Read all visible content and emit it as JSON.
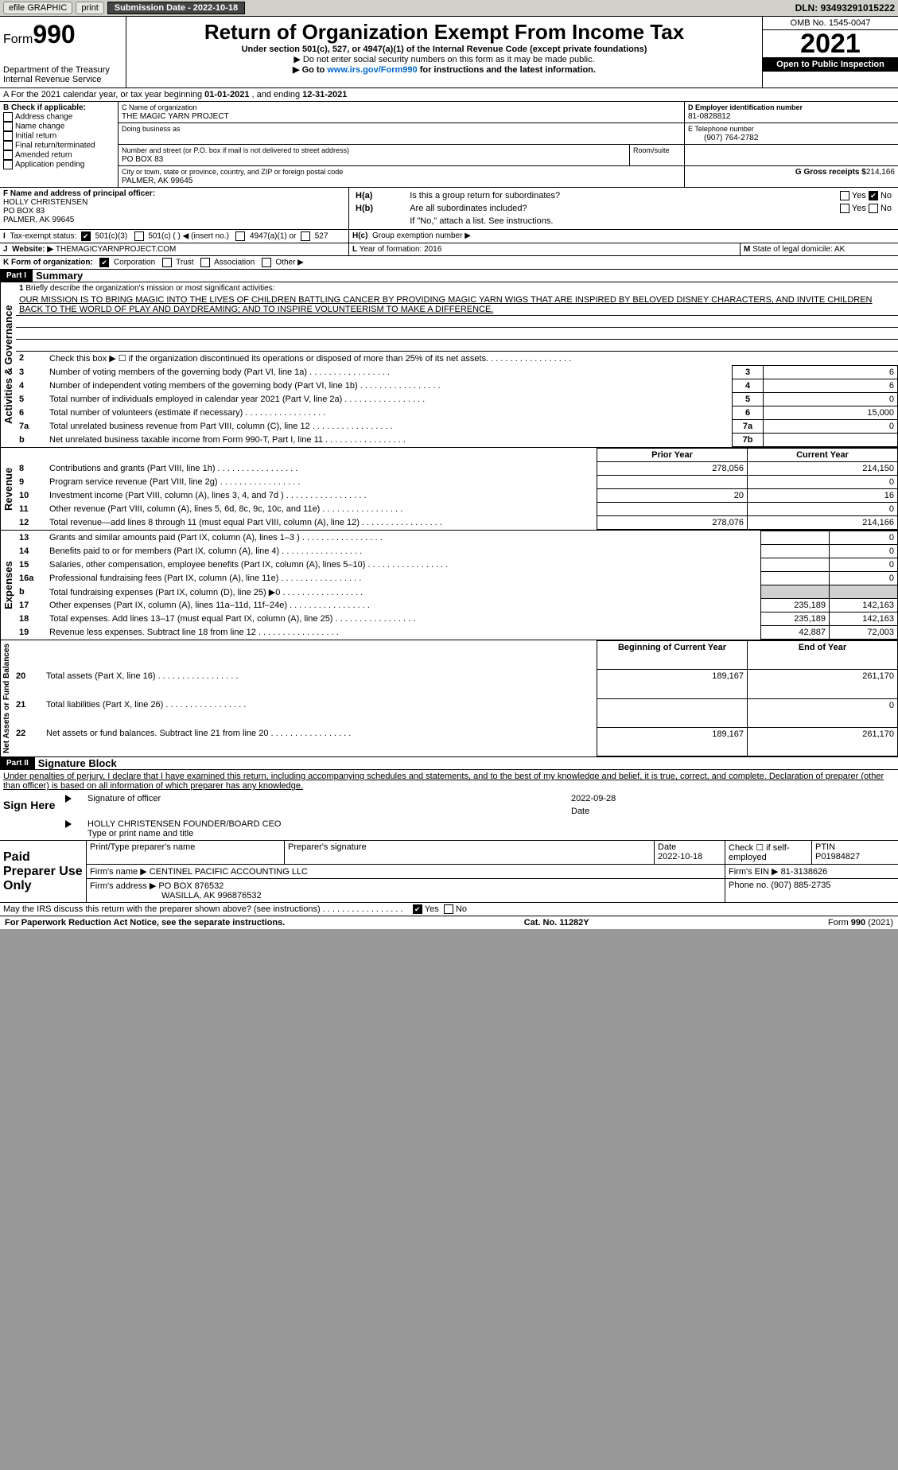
{
  "topbar": {
    "efile": "efile GRAPHIC",
    "print": "print",
    "subdate_label": "Submission Date - ",
    "subdate": "2022-10-18",
    "dln_label": "DLN: ",
    "dln": "93493291015222"
  },
  "header": {
    "form_pre": "Form",
    "form_no": "990",
    "title": "Return of Organization Exempt From Income Tax",
    "subtitle": "Under section 501(c), 527, or 4947(a)(1) of the Internal Revenue Code (except private foundations)",
    "note1": "▶ Do not enter social security numbers on this form as it may be made public.",
    "note2_pre": "▶ Go to ",
    "note2_link": "www.irs.gov/Form990",
    "note2_post": " for instructions and the latest information.",
    "dept": "Department of the Treasury",
    "irs": "Internal Revenue Service",
    "omb": "OMB No. 1545-0047",
    "year": "2021",
    "openpub": "Open to Public Inspection"
  },
  "A": {
    "text_pre": "A For the 2021 calendar year, or tax year beginning ",
    "begin": "01-01-2021",
    "mid": " , and ending ",
    "end": "12-31-2021"
  },
  "B": {
    "label": "B Check if applicable:",
    "items": [
      "Address change",
      "Name change",
      "Initial return",
      "Final return/terminated",
      "Amended return",
      "Application pending"
    ]
  },
  "C": {
    "name_label": "C Name of organization",
    "name": "THE MAGIC YARN PROJECT",
    "dba_label": "Doing business as",
    "street_label": "Number and street (or P.O. box if mail is not delivered to street address)",
    "room_label": "Room/suite",
    "street": "PO BOX 83",
    "city_label": "City or town, state or province, country, and ZIP or foreign postal code",
    "city": "PALMER, AK  99645"
  },
  "D": {
    "label": "D Employer identification number",
    "val": "81-0828812"
  },
  "E": {
    "label": "E Telephone number",
    "val": "(907) 764-2782"
  },
  "G": {
    "label": "G Gross receipts $",
    "val": "214,166"
  },
  "F": {
    "label": "F  Name and address of principal officer:",
    "name": "HOLLY CHRISTENSEN",
    "addr1": "PO BOX 83",
    "addr2": "PALMER, AK  99645"
  },
  "H": {
    "a_label": "H(a)",
    "a_text": "Is this a group return for subordinates?",
    "a_yes": "Yes",
    "a_no": "No",
    "b_label": "H(b)",
    "b_text": "Are all subordinates included?",
    "b_note": "If \"No,\" attach a list. See instructions.",
    "c_label": "H(c)",
    "c_text": "Group exemption number ▶"
  },
  "I": {
    "label": "I",
    "text": "Tax-exempt status:",
    "c3": "501(c)(3)",
    "c": "501(c) (  ) ◀ (insert no.)",
    "a1": "4947(a)(1) or",
    "s527": "527"
  },
  "J": {
    "label": "J",
    "text": "Website: ▶",
    "val": "THEMAGICYARNPROJECT.COM"
  },
  "K": {
    "text": "K Form of organization:",
    "corp": "Corporation",
    "trust": "Trust",
    "assoc": "Association",
    "other": "Other ▶"
  },
  "L": {
    "label": "L",
    "text": "Year of formation: ",
    "val": "2016"
  },
  "M": {
    "label": "M",
    "text": "State of legal domicile: ",
    "val": "AK"
  },
  "part1": {
    "label": "Part I",
    "title": "Summary",
    "side1": "Activities & Governance",
    "side2": "Revenue",
    "side3": "Expenses",
    "side4": "Net Assets or Fund Balances",
    "l1_label": "1",
    "l1": "Briefly describe the organization's mission or most significant activities:",
    "mission": "OUR MISSION IS TO BRING MAGIC INTO THE LIVES OF CHILDREN BATTLING CANCER BY PROVIDING MAGIC YARN WIGS THAT ARE INSPIRED BY BELOVED DISNEY CHARACTERS, AND INVITE CHILDREN BACK TO THE WORLD OF PLAY AND DAYDREAMING; AND TO INSPIRE VOLUNTEERISM TO MAKE A DIFFERENCE.",
    "l2": "Check this box ▶ ☐  if the organization discontinued its operations or disposed of more than 25% of its net assets.",
    "rows_gov": [
      {
        "n": "3",
        "t": "Number of voting members of the governing body (Part VI, line 1a)",
        "box": "3",
        "v": "6"
      },
      {
        "n": "4",
        "t": "Number of independent voting members of the governing body (Part VI, line 1b)",
        "box": "4",
        "v": "6"
      },
      {
        "n": "5",
        "t": "Total number of individuals employed in calendar year 2021 (Part V, line 2a)",
        "box": "5",
        "v": "0"
      },
      {
        "n": "6",
        "t": "Total number of volunteers (estimate if necessary)",
        "box": "6",
        "v": "15,000"
      },
      {
        "n": "7a",
        "t": "Total unrelated business revenue from Part VIII, column (C), line 12",
        "box": "7a",
        "v": "0"
      },
      {
        "n": "b",
        "t": "Net unrelated business taxable income from Form 990-T, Part I, line 11",
        "box": "7b",
        "v": ""
      }
    ],
    "col_prior": "Prior Year",
    "col_current": "Current Year",
    "rows_rev": [
      {
        "n": "8",
        "t": "Contributions and grants (Part VIII, line 1h)",
        "p": "278,056",
        "c": "214,150"
      },
      {
        "n": "9",
        "t": "Program service revenue (Part VIII, line 2g)",
        "p": "",
        "c": "0"
      },
      {
        "n": "10",
        "t": "Investment income (Part VIII, column (A), lines 3, 4, and 7d )",
        "p": "20",
        "c": "16"
      },
      {
        "n": "11",
        "t": "Other revenue (Part VIII, column (A), lines 5, 6d, 8c, 9c, 10c, and 11e)",
        "p": "",
        "c": "0"
      },
      {
        "n": "12",
        "t": "Total revenue—add lines 8 through 11 (must equal Part VIII, column (A), line 12)",
        "p": "278,076",
        "c": "214,166"
      }
    ],
    "rows_exp": [
      {
        "n": "13",
        "t": "Grants and similar amounts paid (Part IX, column (A), lines 1–3 )",
        "p": "",
        "c": "0"
      },
      {
        "n": "14",
        "t": "Benefits paid to or for members (Part IX, column (A), line 4)",
        "p": "",
        "c": "0"
      },
      {
        "n": "15",
        "t": "Salaries, other compensation, employee benefits (Part IX, column (A), lines 5–10)",
        "p": "",
        "c": "0"
      },
      {
        "n": "16a",
        "t": "Professional fundraising fees (Part IX, column (A), line 11e)",
        "p": "",
        "c": "0"
      },
      {
        "n": "b",
        "t": "Total fundraising expenses (Part IX, column (D), line 25) ▶0",
        "p": "shade",
        "c": "shade"
      },
      {
        "n": "17",
        "t": "Other expenses (Part IX, column (A), lines 11a–11d, 11f–24e)",
        "p": "235,189",
        "c": "142,163"
      },
      {
        "n": "18",
        "t": "Total expenses. Add lines 13–17 (must equal Part IX, column (A), line 25)",
        "p": "235,189",
        "c": "142,163"
      },
      {
        "n": "19",
        "t": "Revenue less expenses. Subtract line 18 from line 12",
        "p": "42,887",
        "c": "72,003"
      }
    ],
    "col_begin": "Beginning of Current Year",
    "col_end": "End of Year",
    "rows_net": [
      {
        "n": "20",
        "t": "Total assets (Part X, line 16)",
        "p": "189,167",
        "c": "261,170"
      },
      {
        "n": "21",
        "t": "Total liabilities (Part X, line 26)",
        "p": "",
        "c": "0"
      },
      {
        "n": "22",
        "t": "Net assets or fund balances. Subtract line 21 from line 20",
        "p": "189,167",
        "c": "261,170"
      }
    ]
  },
  "part2": {
    "label": "Part II",
    "title": "Signature Block",
    "decl": "Under penalties of perjury, I declare that I have examined this return, including accompanying schedules and statements, and to the best of my knowledge and belief, it is true, correct, and complete. Declaration of preparer (other than officer) is based on all information of which preparer has any knowledge.",
    "sign": "Sign Here",
    "sigoff": "Signature of officer",
    "date": "Date",
    "sigdate": "2022-09-28",
    "officer": "HOLLY CHRISTENSEN  FOUNDER/BOARD CEO",
    "typename": "Type or print name and title",
    "paid": "Paid Preparer Use Only",
    "pname_label": "Print/Type preparer's name",
    "psig_label": "Preparer's signature",
    "pdate_label": "Date",
    "pdate": "2022-10-18",
    "pcheck": "Check ☐ if self-employed",
    "ptin_label": "PTIN",
    "ptin": "P01984827",
    "firm_label": "Firm's name    ▶",
    "firm": "CENTINEL PACIFIC ACCOUNTING LLC",
    "fein_label": "Firm's EIN ▶",
    "fein": "81-3138626",
    "faddr_label": "Firm's address ▶",
    "faddr1": "PO BOX 876532",
    "faddr2": "WASILLA, AK  996876532",
    "fphone_label": "Phone no.",
    "fphone": "(907) 885-2735",
    "discuss": "May the IRS discuss this return with the preparer shown above? (see instructions)",
    "d_yes": "Yes",
    "d_no": "No"
  },
  "footer": {
    "paperwork": "For Paperwork Reduction Act Notice, see the separate instructions.",
    "cat": "Cat. No. 11282Y",
    "form": "Form 990 (2021)"
  }
}
